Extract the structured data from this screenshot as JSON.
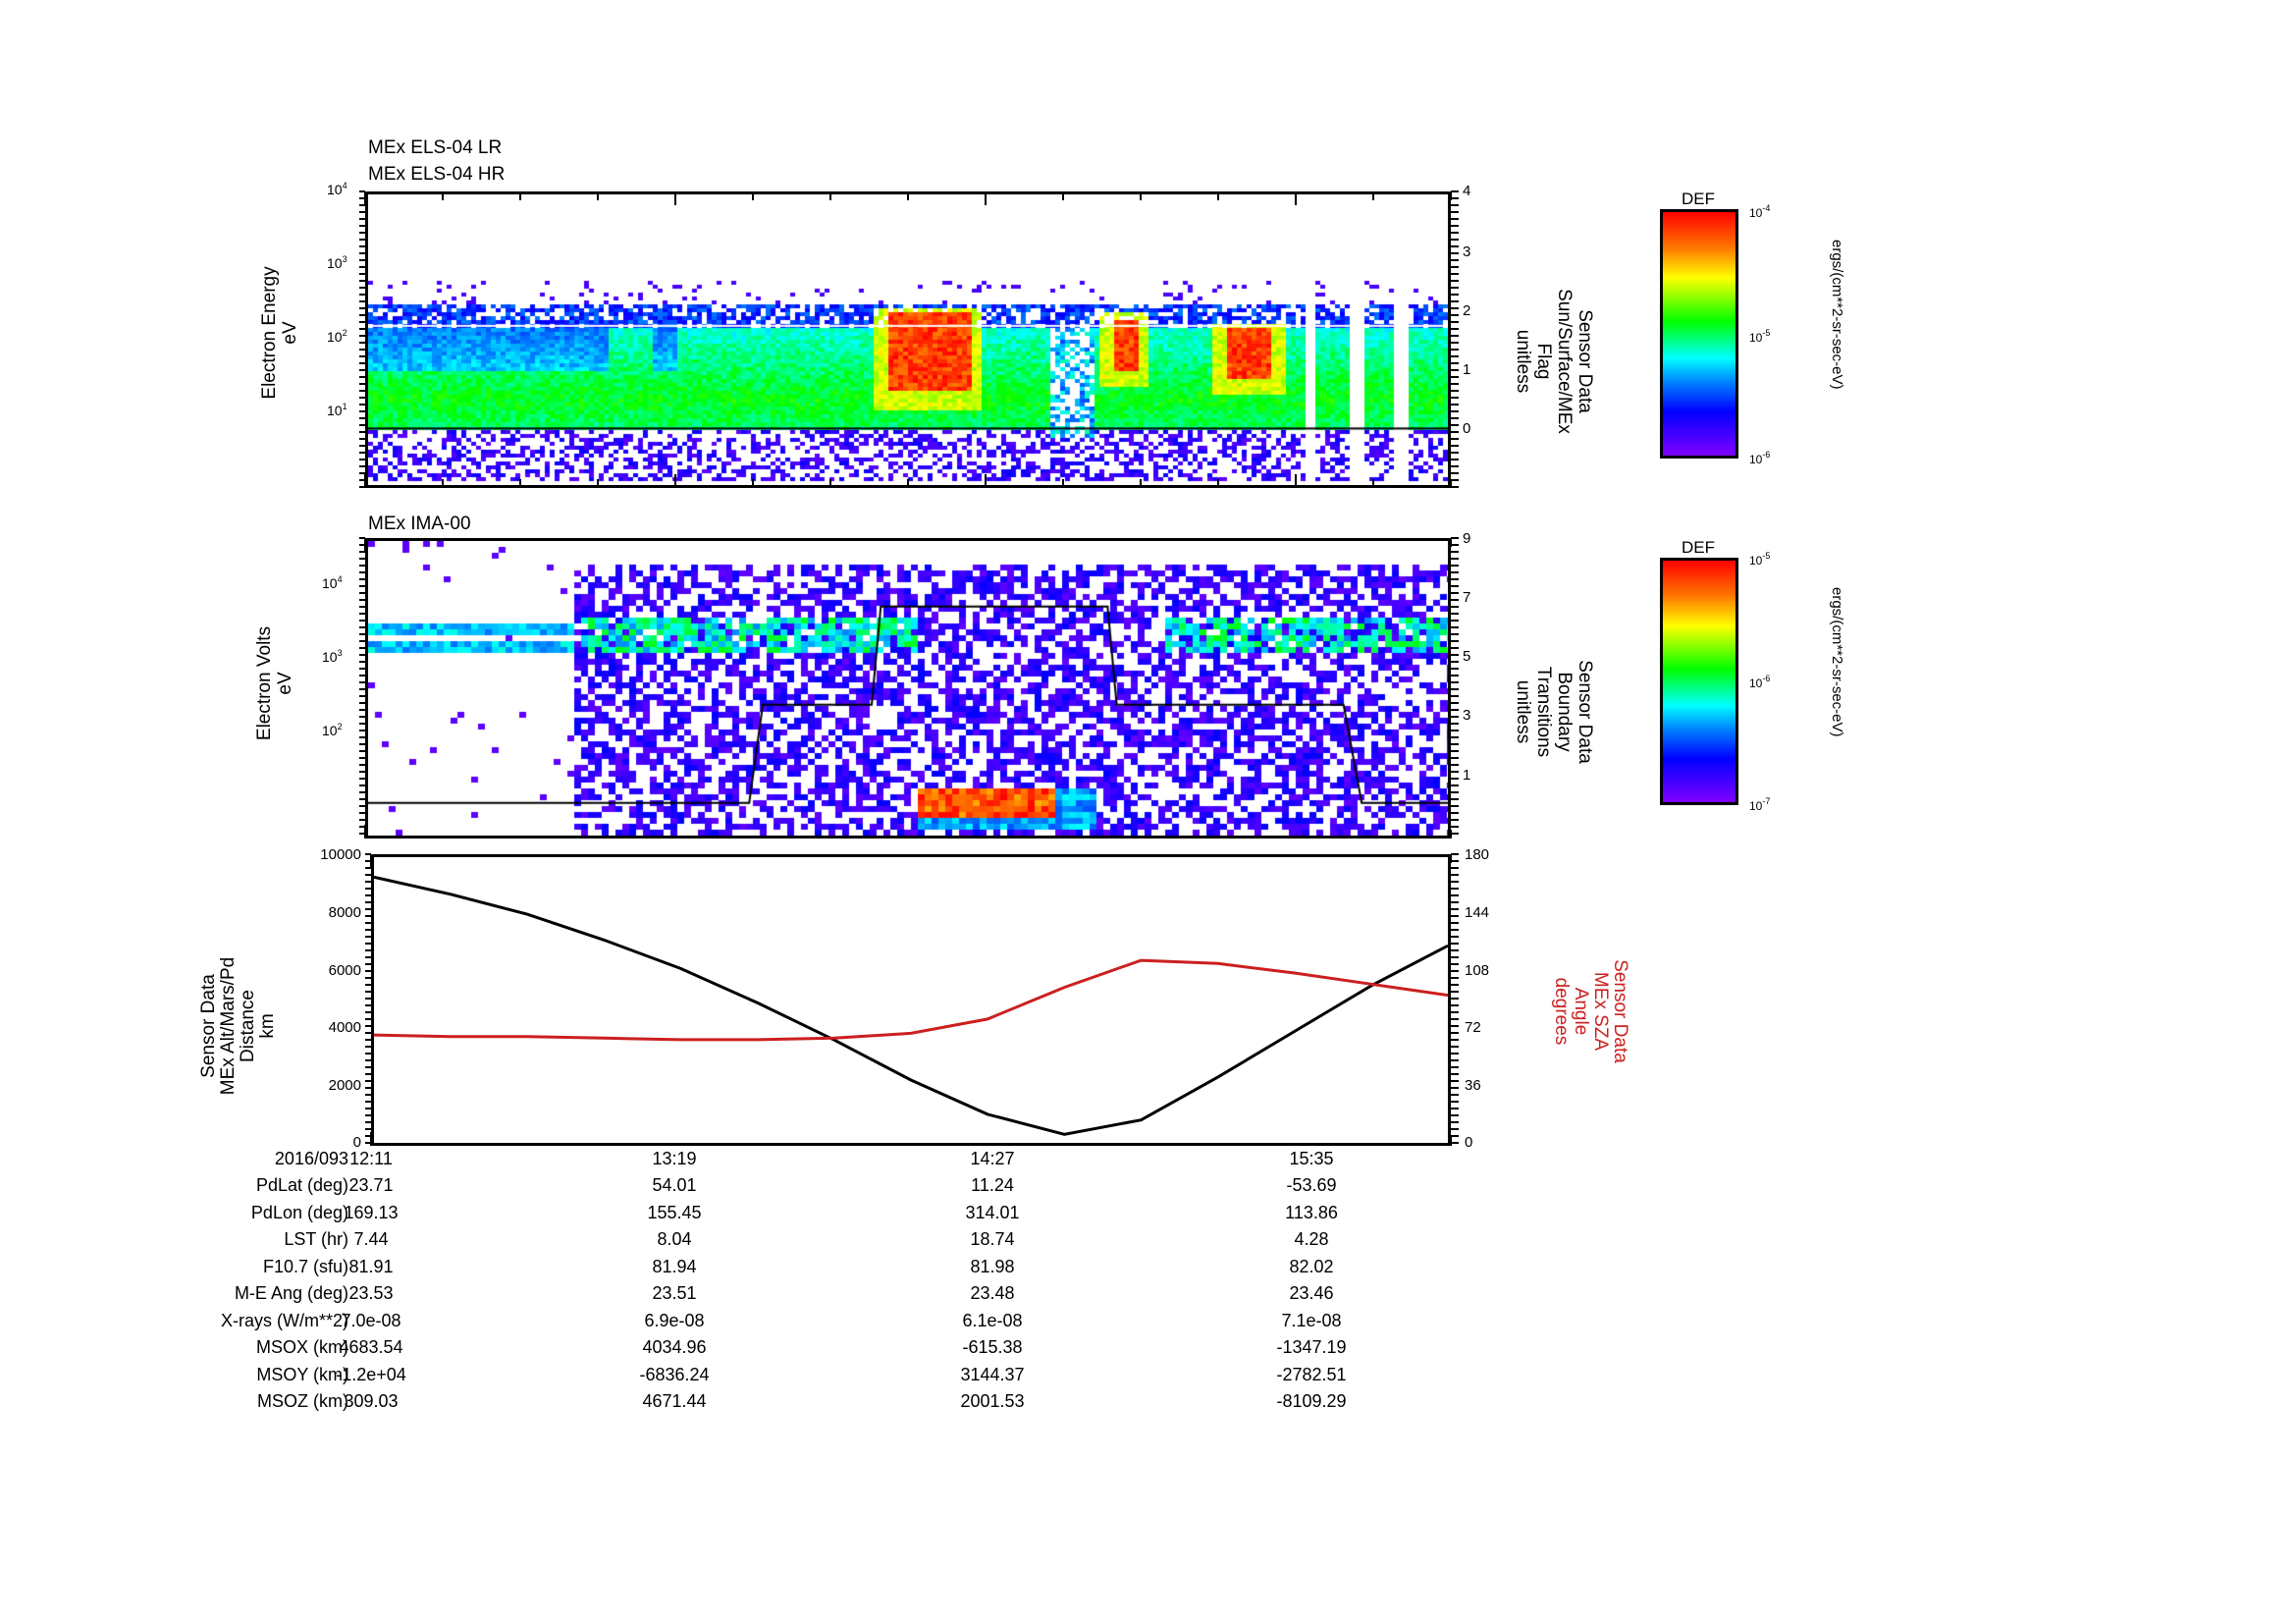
{
  "panels": {
    "els": {
      "titles": [
        "MEx ELS-04 LR",
        "MEx ELS-04 HR"
      ],
      "ylabel": [
        "Electron Energy",
        "eV"
      ],
      "yticks_left": [
        "10^4",
        "10^3",
        "10^2",
        "10^1"
      ],
      "right_ylabel": [
        "Sensor Data",
        "Sun/Surface/MEx",
        "Flag",
        "unitless"
      ],
      "yticks_right": [
        "4",
        "3",
        "2",
        "1",
        "0"
      ],
      "colorbar": {
        "title": "DEF",
        "ticks": [
          "10^-4",
          "10^-5",
          "10^-6"
        ],
        "unit": "ergs/(cm**2-sr-sec-eV)"
      }
    },
    "ima": {
      "titles": [
        "MEx IMA-00"
      ],
      "ylabel": [
        "Electron Volts",
        "eV"
      ],
      "yticks_left": [
        "10^4",
        "10^3",
        "10^2"
      ],
      "right_ylabel": [
        "Sensor Data",
        "Boundary",
        "Transitions",
        "unitless"
      ],
      "yticks_right": [
        "9",
        "7",
        "5",
        "3",
        "1"
      ],
      "colorbar": {
        "title": "DEF",
        "ticks": [
          "10^-5",
          "10^-6",
          "10^-7"
        ],
        "unit": "ergs/(cm**2-sr-sec-eV)"
      }
    },
    "orbit": {
      "ylabel": [
        "Sensor Data",
        "MEx Alt/Mars/Pd",
        "Distance",
        "km"
      ],
      "yticks_left": [
        "10000",
        "8000",
        "6000",
        "4000",
        "2000",
        "0"
      ],
      "right_ylabel": [
        "Sensor Data",
        "MEx SZA",
        "Angle",
        "degrees"
      ],
      "yticks_right": [
        "180",
        "144",
        "108",
        "72",
        "36",
        "0"
      ],
      "right_color": "#cc1f1f"
    }
  },
  "time_axis": {
    "date": "2016/093",
    "labels": [
      "12:11",
      "13:19",
      "14:27",
      "15:35"
    ]
  },
  "ephemeris": {
    "rows": [
      {
        "name": "PdLat (deg)",
        "values": [
          "23.71",
          "54.01",
          "11.24",
          "-53.69"
        ]
      },
      {
        "name": "PdLon (deg)",
        "values": [
          "169.13",
          "155.45",
          "314.01",
          "113.86"
        ]
      },
      {
        "name": "LST (hr)",
        "values": [
          "7.44",
          "8.04",
          "18.74",
          "4.28"
        ]
      },
      {
        "name": "F10.7 (sfu)",
        "values": [
          "81.91",
          "81.94",
          "81.98",
          "82.02"
        ]
      },
      {
        "name": "M-E Ang (deg)",
        "values": [
          "23.53",
          "23.51",
          "23.48",
          "23.46"
        ]
      },
      {
        "name": "X-rays (W/m**2)",
        "values": [
          "7.0e-08",
          "6.9e-08",
          "6.1e-08",
          "7.1e-08"
        ]
      },
      {
        "name": "MSOX (km)",
        "values": [
          "4683.54",
          "4034.96",
          "-615.38",
          "-1347.19"
        ]
      },
      {
        "name": "MSOY (km)",
        "values": [
          "-1.2e+04",
          "-6836.24",
          "3144.37",
          "-2782.51"
        ]
      },
      {
        "name": "MSOZ (km)",
        "values": [
          "309.03",
          "4671.44",
          "2001.53",
          "-8109.29"
        ]
      }
    ]
  },
  "chart_data": [
    {
      "type": "heatmap",
      "title": "MEx ELS-04 LR / MEx ELS-04 HR",
      "xlabel": "UT 2016/093",
      "x_ticks": [
        "12:11",
        "13:19",
        "14:27",
        "15:35"
      ],
      "ylabel": "Electron Energy (eV)",
      "y_scale": "log",
      "ylim": [
        1,
        10000
      ],
      "colorbar": {
        "label": "DEF ergs/(cm**2-sr-sec-eV)",
        "range": [
          1e-06,
          0.0001
        ],
        "scale": "log"
      },
      "features": [
        {
          "t_start": "12:11",
          "t_end": "14:40",
          "emin_eV": 6,
          "emax_eV": 200,
          "level": "green (~1e-5)"
        },
        {
          "t_start": "13:04",
          "t_end": "13:13",
          "emin_eV": 20,
          "emax_eV": 200,
          "level": "green"
        },
        {
          "t_start": "14:05",
          "t_end": "14:23",
          "emin_eV": 20,
          "emax_eV": 250,
          "level": "red (~1e-4)"
        },
        {
          "t_start": "14:55",
          "t_end": "15:00",
          "emin_eV": 40,
          "emax_eV": 200,
          "level": "red"
        },
        {
          "t_start": "15:20",
          "t_end": "15:30",
          "emin_eV": 30,
          "emax_eV": 150,
          "level": "orange/red"
        }
      ],
      "overlay_line": {
        "name": "Sun/Surface/MEx Flag",
        "right_ylim": [
          -1,
          4
        ],
        "value": 0,
        "right_ticks": [
          0,
          1,
          2,
          3,
          4
        ]
      }
    },
    {
      "type": "heatmap",
      "title": "MEx IMA-00",
      "xlabel": "UT 2016/093",
      "x_ticks": [
        "12:11",
        "13:19",
        "14:27",
        "15:35"
      ],
      "ylabel": "Electron Volts (eV)",
      "y_scale": "log",
      "ylim": [
        5,
        40000
      ],
      "colorbar": {
        "label": "DEF ergs/(cm**2-sr-sec-eV)",
        "range": [
          1e-07,
          1e-05
        ],
        "scale": "log"
      },
      "features": [
        {
          "t_start": "12:11",
          "t_end": "12:55",
          "emin_eV": 1500,
          "emax_eV": 3500,
          "level": "cyan/blue bands"
        },
        {
          "t_start": "13:00",
          "t_end": "14:05",
          "emin_eV": 1500,
          "emax_eV": 3500,
          "level": "green/cyan"
        },
        {
          "t_start": "14:12",
          "t_end": "14:42",
          "emin_eV": 10,
          "emax_eV": 25,
          "level": "red (~1e-5)"
        },
        {
          "t_start": "14:55",
          "t_end": "16:10",
          "emin_eV": 1500,
          "emax_eV": 4000,
          "level": "blue/cyan"
        }
      ],
      "overlay_line": {
        "name": "Boundary Transitions",
        "right_ylim": [
          0,
          9
        ],
        "right_ticks": [
          1,
          3,
          5,
          7,
          9
        ],
        "steps": [
          {
            "t": "12:11",
            "v": 1
          },
          {
            "t": "13:35",
            "v": 1
          },
          {
            "t": "13:38",
            "v": 4
          },
          {
            "t": "14:02",
            "v": 4
          },
          {
            "t": "14:04",
            "v": 7
          },
          {
            "t": "14:54",
            "v": 7
          },
          {
            "t": "14:56",
            "v": 4
          },
          {
            "t": "15:46",
            "v": 4
          },
          {
            "t": "15:50",
            "v": 1
          },
          {
            "t": "16:10",
            "v": 1
          }
        ]
      }
    },
    {
      "type": "line",
      "title": "",
      "xlabel": "UT 2016/093",
      "x_ticks": [
        "12:11",
        "13:19",
        "14:27",
        "15:35"
      ],
      "ylabel": "Sensor Data MEx Alt/Mars/Pd Distance (km)",
      "ylim": [
        0,
        10000
      ],
      "y2label": "Sensor Data MEx SZA Angle (degrees)",
      "y2lim": [
        0,
        180
      ],
      "grid": false,
      "x_minutes": [
        0,
        17,
        34,
        51,
        68,
        85,
        102,
        119,
        136,
        153,
        170,
        187,
        204,
        221,
        238
      ],
      "series": [
        {
          "name": "MEx Alt (km)",
          "axis": "left",
          "color": "#000000",
          "values": [
            9300,
            8700,
            8000,
            7100,
            6100,
            4900,
            3600,
            2200,
            1000,
            300,
            800,
            2300,
            3900,
            5500,
            6900
          ]
        },
        {
          "name": "MEx SZA (deg)",
          "axis": "right",
          "color": "#cc1f1f",
          "values": [
            68,
            67,
            67,
            66,
            65,
            65,
            66,
            69,
            78,
            98,
            115,
            113,
            107,
            100,
            93
          ]
        }
      ]
    }
  ]
}
